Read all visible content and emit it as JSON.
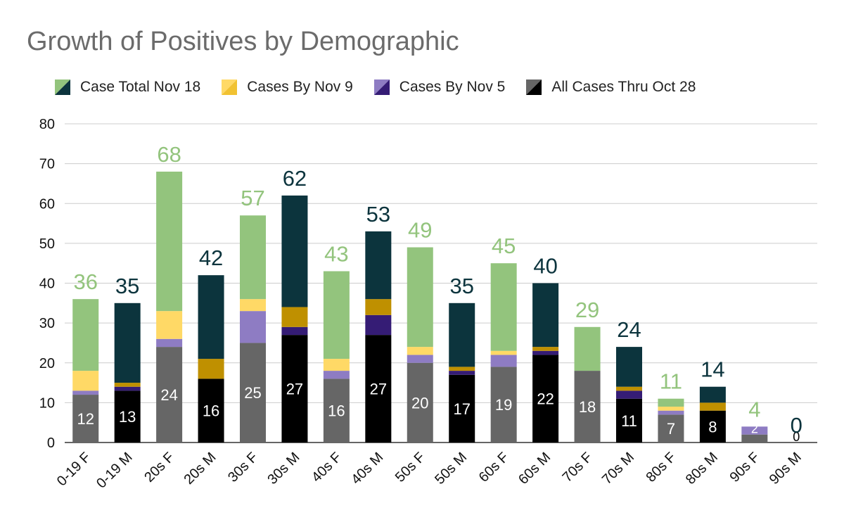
{
  "chart_data": {
    "type": "bar",
    "stacked": true,
    "title": "Growth of Positives by Demographic",
    "xlabel": "",
    "ylabel": "",
    "ylim": [
      0,
      80
    ],
    "yticks": [
      0,
      10,
      20,
      30,
      40,
      50,
      60,
      70,
      80
    ],
    "grid": true,
    "legend_position": "top",
    "categories": [
      "0-19 F",
      "0-19 M",
      "20s F",
      "20s M",
      "30s F",
      "30s M",
      "40s F",
      "40s M",
      "50s F",
      "50s M",
      "60s F",
      "60s M",
      "70s F",
      "70s M",
      "80s F",
      "80s M",
      "90s F",
      "90s M"
    ],
    "series": [
      {
        "name": "All Cases Thru Oct 28",
        "values": [
          12,
          13,
          24,
          16,
          25,
          27,
          16,
          27,
          20,
          17,
          19,
          22,
          18,
          11,
          7,
          8,
          2,
          0
        ]
      },
      {
        "name": "Cases By Nov 5",
        "values": [
          1,
          1,
          2,
          0,
          8,
          2,
          2,
          5,
          2,
          1,
          3,
          1,
          0,
          2,
          1,
          0,
          2,
          0
        ]
      },
      {
        "name": "Cases By Nov 9",
        "values": [
          5,
          1,
          7,
          5,
          3,
          5,
          3,
          4,
          2,
          1,
          1,
          1,
          0,
          1,
          1,
          2,
          0,
          0
        ]
      },
      {
        "name": "Case Total Nov 18",
        "values": [
          18,
          20,
          35,
          21,
          21,
          28,
          22,
          17,
          25,
          16,
          22,
          16,
          11,
          10,
          2,
          4,
          0,
          0
        ]
      }
    ],
    "totals": [
      36,
      35,
      68,
      42,
      57,
      62,
      43,
      53,
      49,
      35,
      45,
      40,
      29,
      24,
      11,
      14,
      4,
      0
    ],
    "legend_order": [
      "Case Total Nov 18",
      "Cases By Nov 9",
      "Cases By Nov 5",
      "All Cases Thru Oct 28"
    ]
  },
  "colors": {
    "female": {
      "All Cases Thru Oct 28": "#666666",
      "Cases By Nov 5": "#8e7cc3",
      "Cases By Nov 9": "#ffd966",
      "Case Total Nov 18": "#93c47d",
      "total_label": "#93c47d",
      "base_label": "#ffffff"
    },
    "male": {
      "All Cases Thru Oct 28": "#000000",
      "Cases By Nov 5": "#351c75",
      "Cases By Nov 9": "#bf9000",
      "Case Total Nov 18": "#0c343d",
      "total_label": "#0c343d",
      "base_label": "#ffffff"
    },
    "axis_text": "#111111",
    "grid": "#cccccc"
  }
}
